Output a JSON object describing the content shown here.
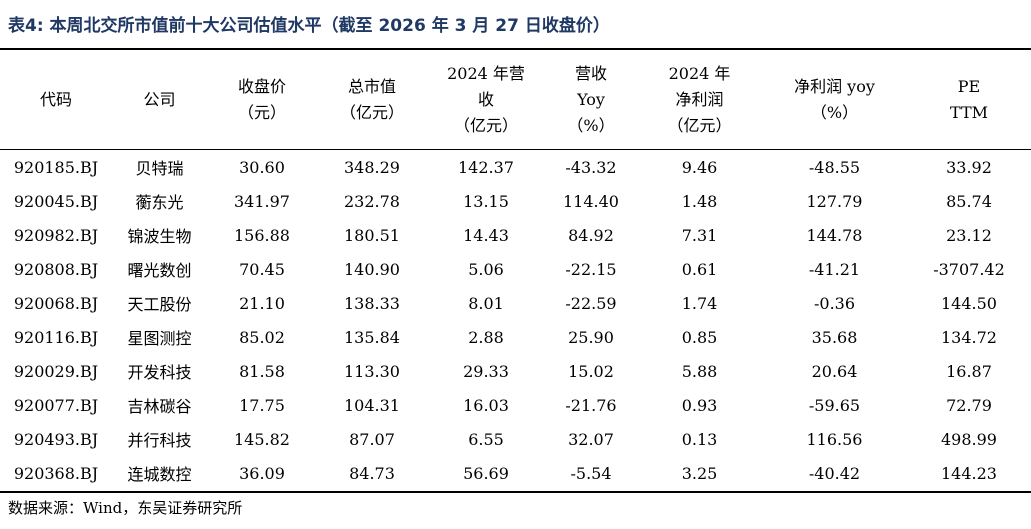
{
  "title": "表4:  本周北交所市值前十大公司估值水平（截至 2026 年 3 月 27 日收盘价）",
  "headers": [
    [
      "代码"
    ],
    [
      "公司"
    ],
    [
      "收盘价",
      "（元）"
    ],
    [
      "总市值",
      "（亿元）"
    ],
    [
      "2024 年营",
      "收",
      "（亿元）"
    ],
    [
      "营收",
      "Yoy",
      "（%）"
    ],
    [
      "2024  年",
      "净利润",
      "（亿元）"
    ],
    [
      "净利润 yoy",
      "（%）"
    ],
    [
      "PE",
      "TTM"
    ]
  ],
  "rows": [
    [
      "920185.BJ",
      "贝特瑞",
      "30.60",
      "348.29",
      "142.37",
      "-43.32",
      "9.46",
      "-48.55",
      "33.92"
    ],
    [
      "920045.BJ",
      "蘅东光",
      "341.97",
      "232.78",
      "13.15",
      "114.40",
      "1.48",
      "127.79",
      "85.74"
    ],
    [
      "920982.BJ",
      "锦波生物",
      "156.88",
      "180.51",
      "14.43",
      "84.92",
      "7.31",
      "144.78",
      "23.12"
    ],
    [
      "920808.BJ",
      "曙光数创",
      "70.45",
      "140.90",
      "5.06",
      "-22.15",
      "0.61",
      "-41.21",
      "-3707.42"
    ],
    [
      "920068.BJ",
      "天工股份",
      "21.10",
      "138.33",
      "8.01",
      "-22.59",
      "1.74",
      "-0.36",
      "144.50"
    ],
    [
      "920116.BJ",
      "星图测控",
      "85.02",
      "135.84",
      "2.88",
      "25.90",
      "0.85",
      "35.68",
      "134.72"
    ],
    [
      "920029.BJ",
      "开发科技",
      "81.58",
      "113.30",
      "29.33",
      "15.02",
      "5.88",
      "20.64",
      "16.87"
    ],
    [
      "920077.BJ",
      "吉林碳谷",
      "17.75",
      "104.31",
      "16.03",
      "-21.76",
      "0.93",
      "-59.65",
      "72.79"
    ],
    [
      "920493.BJ",
      "并行科技",
      "145.82",
      "87.07",
      "6.55",
      "32.07",
      "0.13",
      "116.56",
      "498.99"
    ],
    [
      "920368.BJ",
      "连城数控",
      "36.09",
      "84.73",
      "56.69",
      "-5.54",
      "3.25",
      "-40.42",
      "144.23"
    ]
  ],
  "source": "数据来源：Wind，东吴证券研究所"
}
